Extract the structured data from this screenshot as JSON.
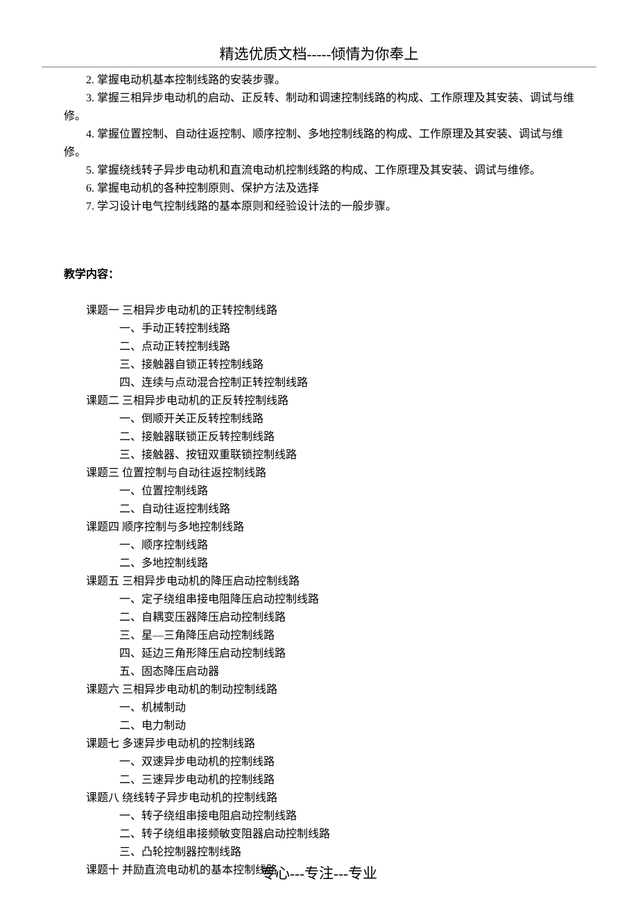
{
  "header": {
    "title": "精选优质文档-----倾情为你奉上"
  },
  "numbered_items": [
    "2. 掌握电动机基本控制线路的安装步骤。",
    "3. 掌握三相异步电动机的启动、正反转、制动和调速控制线路的构成、工作原理及其安装、调试与维修。",
    "4. 掌握位置控制、自动往返控制、顺序控制、多地控制线路的构成、工作原理及其安装、调试与维修。",
    "5. 掌握绕线转子异步电动机和直流电动机控制线路的构成、工作原理及其安装、调试与维修。",
    "6. 掌握电动机的各种控制原则、保护方法及选择",
    "7. 学习设计电气控制线路的基本原则和经验设计法的一般步骤。"
  ],
  "section_heading": "教学内容：",
  "outline": [
    {
      "title": "课题一 三相异步电动机的正转控制线路",
      "items": [
        "一、手动正转控制线路",
        "二、点动正转控制线路",
        "三、接触器自锁正转控制线路",
        "四、连续与点动混合控制正转控制线路"
      ]
    },
    {
      "title": "课题二 三相异步电动机的正反转控制线路",
      "items": [
        "一、倒顺开关正反转控制线路",
        "二、接触器联锁正反转控制线路",
        "三、接触器、按钮双重联锁控制线路"
      ]
    },
    {
      "title": "课题三 位置控制与自动往返控制线路",
      "items": [
        "一、位置控制线路",
        "二、自动往返控制线路"
      ]
    },
    {
      "title": "课题四 顺序控制与多地控制线路",
      "items": [
        "一、顺序控制线路",
        "二、多地控制线路"
      ]
    },
    {
      "title": "课题五 三相异步电动机的降压启动控制线路",
      "items": [
        "一、定子绕组串接电阻降压启动控制线路",
        "二、自耦变压器降压启动控制线路",
        "三、星—三角降压启动控制线路",
        "四、延边三角形降压启动控制线路",
        "五、固态降压启动器"
      ]
    },
    {
      "title": "课题六 三相异步电动机的制动控制线路",
      "items": [
        "一、机械制动",
        "二、电力制动"
      ]
    },
    {
      "title": "课题七 多速异步电动机的控制线路",
      "items": [
        "一、双速异步电动机的控制线路",
        "二、三速异步电动机的控制线路"
      ]
    },
    {
      "title": "课题八 绕线转子异步电动机的控制线路",
      "items": [
        "一、转子绕组串接电阻启动控制线路",
        "二、转子绕组串接频敏变阻器启动控制线路",
        "三、凸轮控制器控制线路"
      ]
    },
    {
      "title": "课题十 并励直流电动机的基本控制线路",
      "items": []
    }
  ],
  "footer": {
    "text": "专心---专注---专业"
  }
}
